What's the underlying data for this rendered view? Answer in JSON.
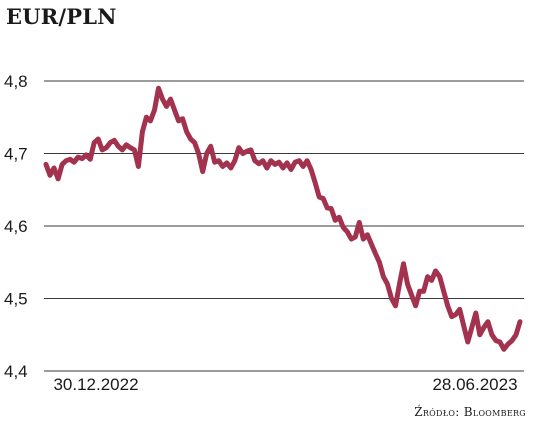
{
  "chart_data": {
    "type": "line",
    "title": "EUR/PLN",
    "xlabel": "",
    "ylabel": "",
    "ylim": [
      4.4,
      4.8
    ],
    "yticks": [
      "4,8",
      "4,7",
      "4,6",
      "4,5",
      "4,4"
    ],
    "ytick_values": [
      4.8,
      4.7,
      4.6,
      4.5,
      4.4
    ],
    "x_start_label": "30.12.2022",
    "x_end_label": "28.06.2023",
    "grid": true,
    "line_color": "#a3324f",
    "series": [
      {
        "values": [
          4.685,
          4.67,
          4.68,
          4.665,
          4.685,
          4.69,
          4.692,
          4.688,
          4.695,
          4.693,
          4.698,
          4.692,
          4.715,
          4.72,
          4.705,
          4.708,
          4.715,
          4.718,
          4.71,
          4.705,
          4.712,
          4.708,
          4.705,
          4.682,
          4.73,
          4.75,
          4.745,
          4.76,
          4.79,
          4.775,
          4.765,
          4.775,
          4.76,
          4.745,
          4.748,
          4.73,
          4.72,
          4.715,
          4.7,
          4.675,
          4.7,
          4.71,
          4.688,
          4.69,
          4.682,
          4.687,
          4.68,
          4.69,
          4.708,
          4.7,
          4.703,
          4.705,
          4.69,
          4.686,
          4.69,
          4.68,
          4.69,
          4.685,
          4.688,
          4.68,
          4.687,
          4.678,
          4.688,
          4.69,
          4.682,
          4.69,
          4.678,
          4.66,
          4.64,
          4.638,
          4.625,
          4.624,
          4.608,
          4.612,
          4.598,
          4.592,
          4.582,
          4.585,
          4.605,
          4.582,
          4.588,
          4.575,
          4.562,
          4.55,
          4.53,
          4.52,
          4.5,
          4.49,
          4.52,
          4.548,
          4.52,
          4.505,
          4.49,
          4.51,
          4.51,
          4.53,
          4.525,
          4.538,
          4.53,
          4.51,
          4.49,
          4.475,
          4.478,
          4.485,
          4.462,
          4.44,
          4.46,
          4.48,
          4.45,
          4.46,
          4.468,
          4.45,
          4.442,
          4.44,
          4.43,
          4.437,
          4.442,
          4.45,
          4.468
        ]
      }
    ]
  },
  "source_label": "Źródło: Bloomberg"
}
